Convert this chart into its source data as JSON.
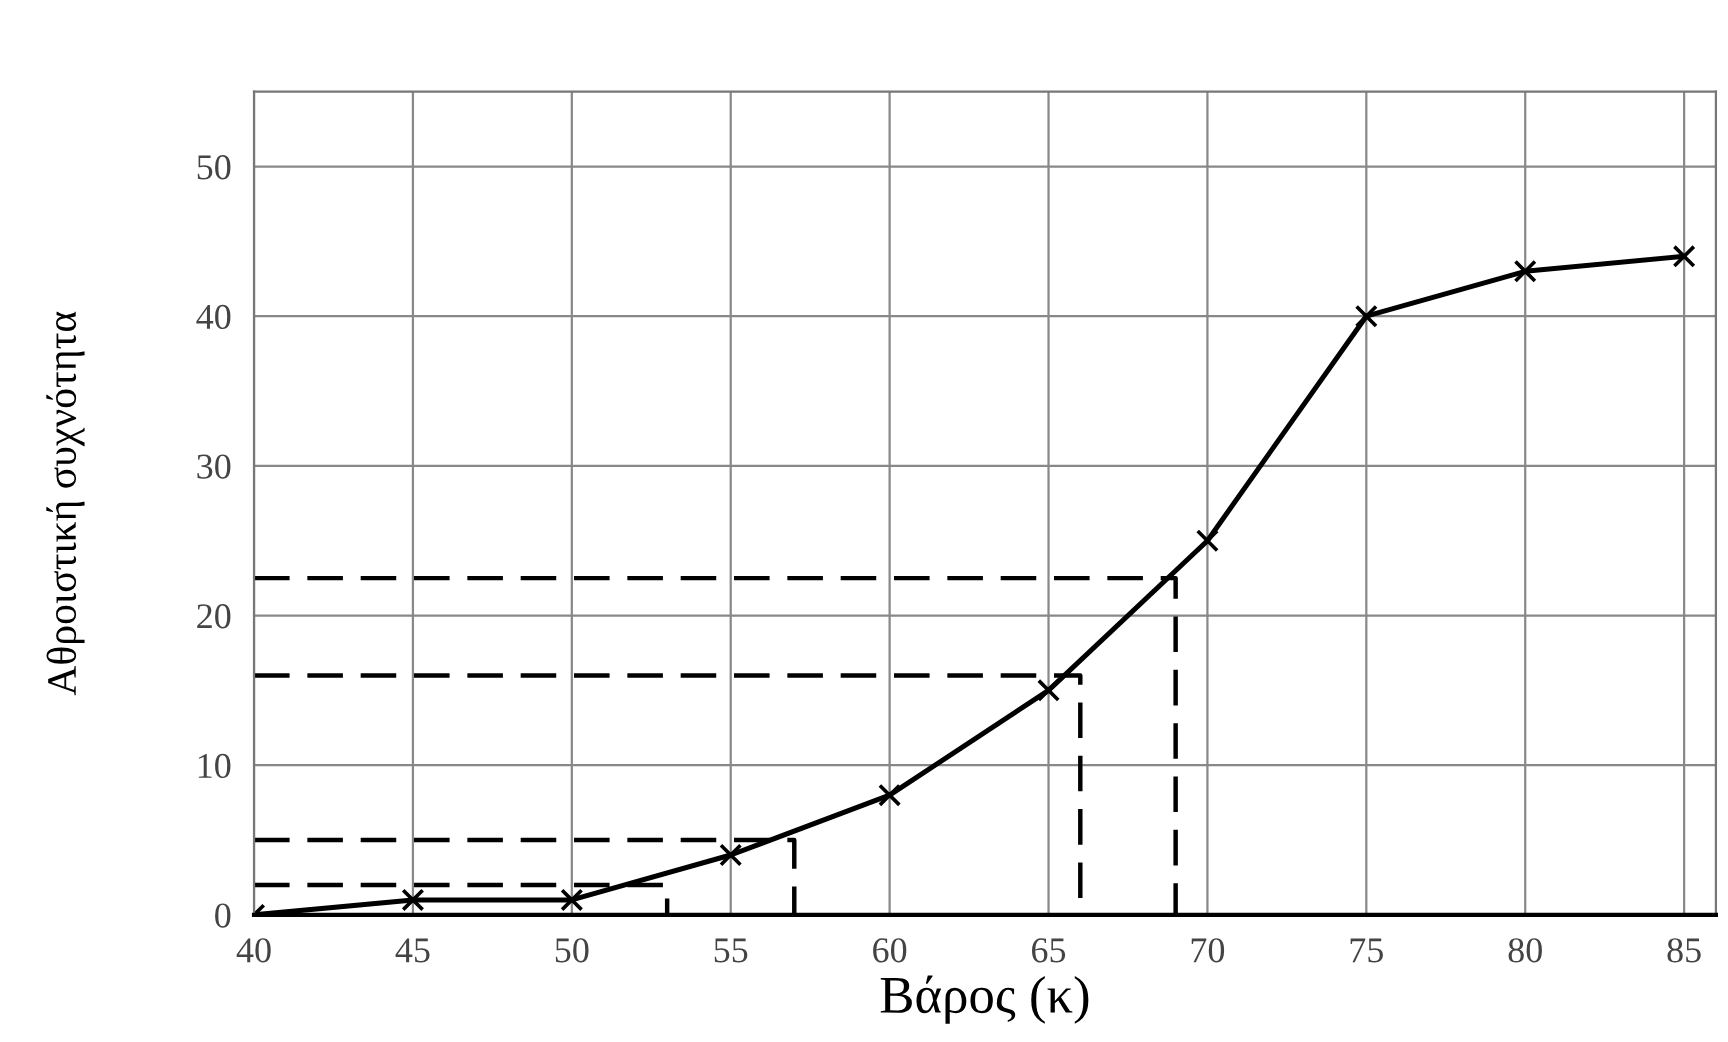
{
  "chart_data": {
    "type": "line",
    "xlabel": "Βάρος (κ)",
    "ylabel": "Αθροιστική συχνότητα",
    "xlim": [
      40,
      86
    ],
    "xticks": [
      40,
      45,
      50,
      55,
      60,
      65,
      70,
      75,
      80,
      85
    ],
    "ylim": [
      0,
      55
    ],
    "yticks": [
      0,
      10,
      20,
      30,
      40,
      50
    ],
    "grid": true,
    "series": [
      {
        "color": "#000000",
        "marker": "cross",
        "line_style": "solid",
        "x": [
          40,
          45,
          50,
          55,
          60,
          65,
          70,
          75,
          80,
          85
        ],
        "values": [
          0,
          1,
          1,
          4,
          8,
          15,
          25,
          40,
          43,
          44
        ]
      },
      {
        "color": "#000000",
        "marker": "none",
        "line_style": "dashed",
        "x": [
          40,
          53,
          53
        ],
        "values": [
          2,
          2,
          0
        ]
      },
      {
        "color": "#000000",
        "marker": "none",
        "line_style": "dashed",
        "x": [
          40,
          57,
          57
        ],
        "values": [
          5,
          5,
          0
        ]
      },
      {
        "color": "#000000",
        "marker": "none",
        "line_style": "dashed",
        "x": [
          40,
          66,
          66
        ],
        "values": [
          16,
          16,
          0
        ]
      },
      {
        "color": "#000000",
        "marker": "none",
        "line_style": "dashed",
        "x": [
          40,
          69,
          69
        ],
        "values": [
          22.5,
          22.5,
          0
        ]
      }
    ]
  }
}
